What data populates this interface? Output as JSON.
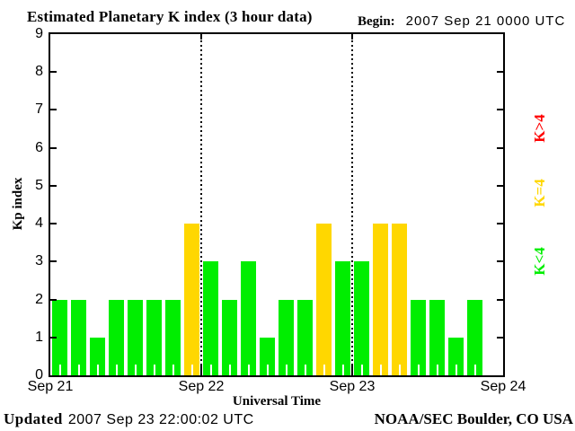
{
  "header": {
    "title": "Estimated Planetary K index (3 hour data)",
    "begin_label": "Begin:",
    "begin_value": "2007 Sep 21 0000 UTC"
  },
  "y_axis": {
    "label": "Kp index",
    "ticks": [
      0,
      1,
      2,
      3,
      4,
      5,
      6,
      7,
      8,
      9
    ]
  },
  "x_axis": {
    "label": "Universal Time",
    "ticks": [
      "Sep 21",
      "Sep 22",
      "Sep 23",
      "Sep 24"
    ]
  },
  "legend": [
    {
      "name": "legend-k-gt-4",
      "label": "K>4",
      "color": "#ff0000"
    },
    {
      "name": "legend-k-eq-4",
      "label": "K=4",
      "color": "#ffd700"
    },
    {
      "name": "legend-k-lt-4",
      "label": "K<4",
      "color": "#00ee00"
    }
  ],
  "footer": {
    "updated_label": "Updated",
    "updated_value": "2007 Sep 23 22:00:02 UTC",
    "source": "NOAA/SEC Boulder, CO USA"
  },
  "chart_data": {
    "type": "bar",
    "title": "Estimated Planetary K index (3 hour data)",
    "xlabel": "Universal Time",
    "ylabel": "Kp index",
    "ylim": [
      0,
      9
    ],
    "x_slot_hours": 3,
    "slots_per_day": 8,
    "total_slots": 24,
    "grid": "day-boundary-dotted-lines",
    "legend_position": "right-rotated",
    "series": [
      {
        "date": "2007 Sep 21",
        "values": [
          2,
          2,
          1,
          2,
          2,
          2,
          2,
          4
        ]
      },
      {
        "date": "2007 Sep 22",
        "values": [
          3,
          2,
          3,
          1,
          2,
          2,
          4,
          3
        ]
      },
      {
        "date": "2007 Sep 23",
        "values": [
          3,
          4,
          4,
          2,
          2,
          1,
          2
        ]
      }
    ],
    "colors": {
      "below_4": "#00ee00",
      "equal_4": "#ffd700",
      "above_4": "#ff0000"
    },
    "day_boundary_slots": [
      8,
      16
    ]
  }
}
